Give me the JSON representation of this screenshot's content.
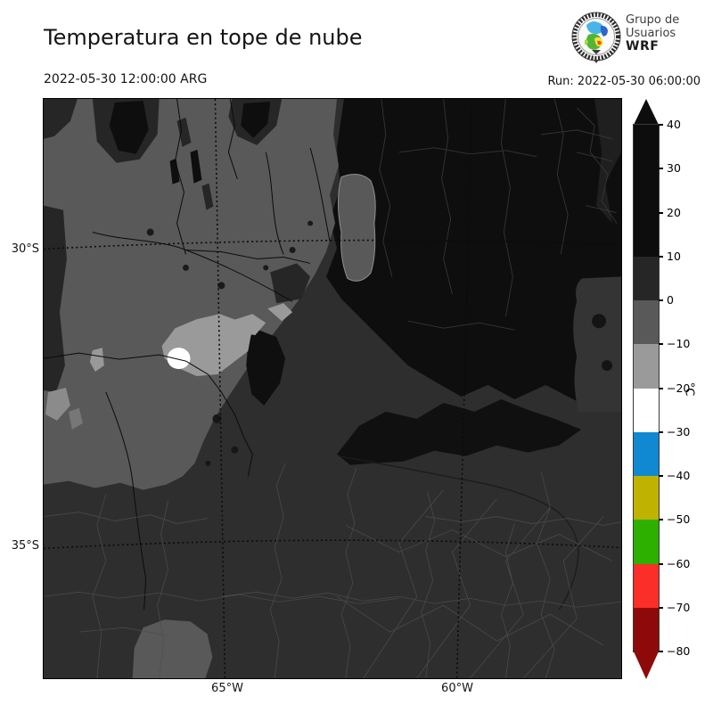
{
  "header": {
    "title": "Temperatura en tope de nube",
    "valid_time": "2022-05-30 12:00:00 ARG",
    "run": "Run: 2022-05-30 06:00:00"
  },
  "logo": {
    "line1": "Grupo de",
    "line2": "Usuarios",
    "line3": "WRF"
  },
  "axes": {
    "lat": [
      "30°S",
      "35°S"
    ],
    "lon": [
      "65°W",
      "60°W"
    ]
  },
  "colorbar": {
    "unit": "°C",
    "ticks": [
      "40",
      "30",
      "20",
      "10",
      "0",
      "−10",
      "−20",
      "−30",
      "−40",
      "−50",
      "−60",
      "−70",
      "−80"
    ],
    "over_arrow_color": "#0d0d0d",
    "under_arrow_color": "#8e0a0a",
    "bands": [
      {
        "from": 10,
        "to": 40,
        "span": 30,
        "color": "#0d0d0d"
      },
      {
        "from": 0,
        "to": 10,
        "span": 10,
        "color": "#262626"
      },
      {
        "from": -10,
        "to": 0,
        "span": 10,
        "color": "#595959"
      },
      {
        "from": -20,
        "to": -10,
        "span": 10,
        "color": "#9a9a9a"
      },
      {
        "from": -30,
        "to": -20,
        "span": 10,
        "color": "#ffffff"
      },
      {
        "from": -40,
        "to": -30,
        "span": 10,
        "color": "#1189d2"
      },
      {
        "from": -50,
        "to": -40,
        "span": 10,
        "color": "#c0b200"
      },
      {
        "from": -60,
        "to": -50,
        "span": 10,
        "color": "#2db000"
      },
      {
        "from": -70,
        "to": -60,
        "span": 10,
        "color": "#fb2e2a"
      },
      {
        "from": -80,
        "to": -70,
        "span": 10,
        "color": "#8e0a0a"
      }
    ]
  }
}
